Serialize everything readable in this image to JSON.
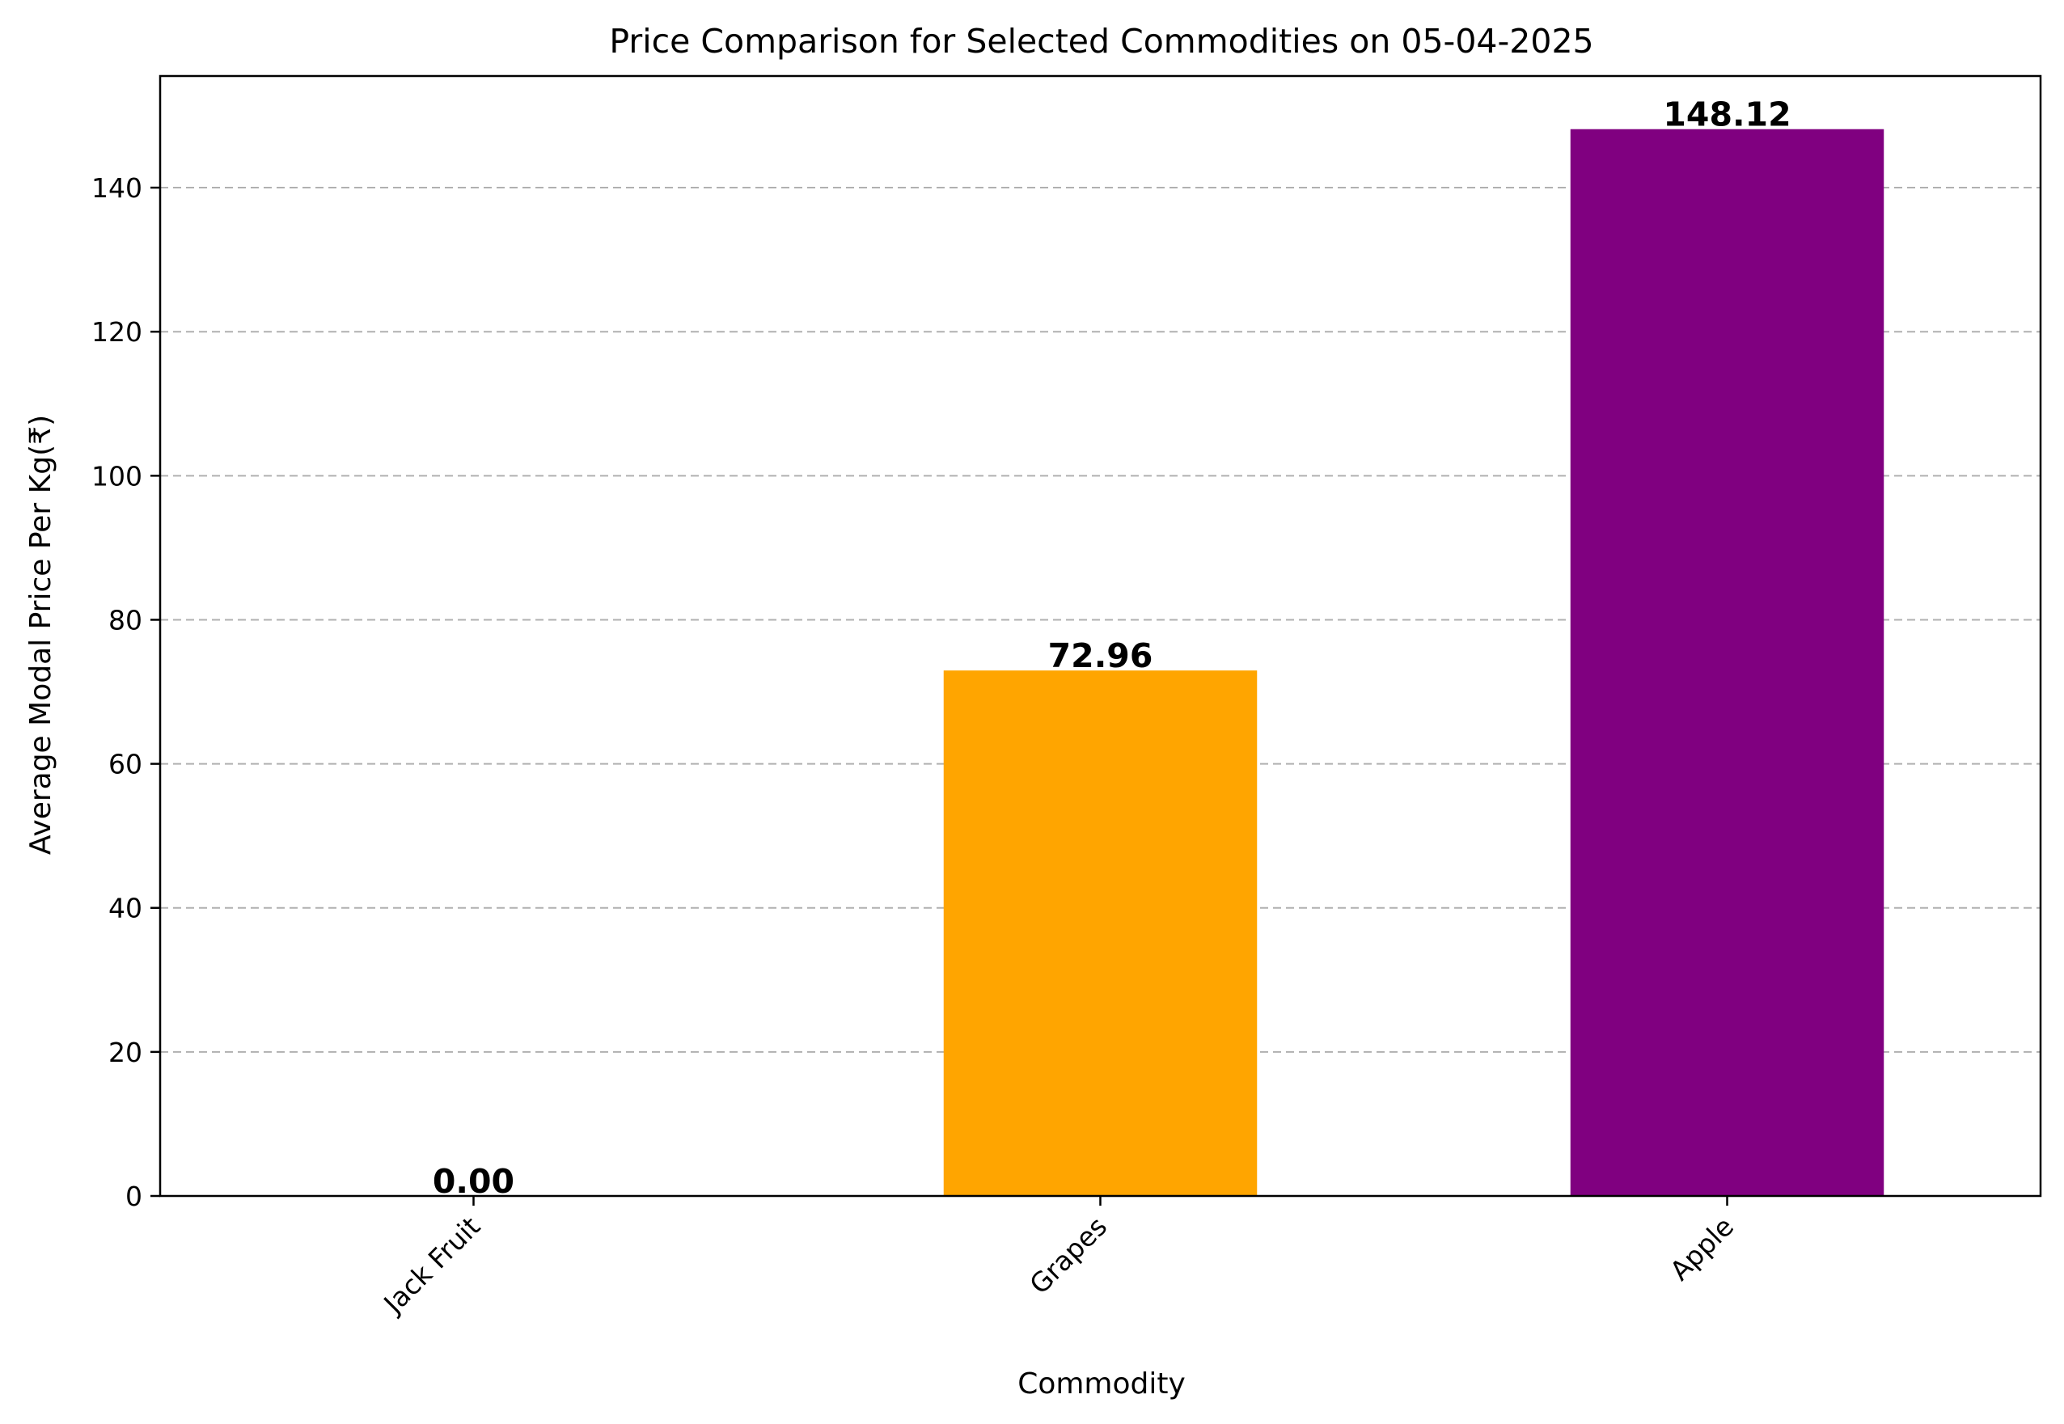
{
  "chart_data": {
    "type": "bar",
    "title": "Price Comparison for Selected Commodities on 05-04-2025",
    "xlabel": "Commodity",
    "ylabel": "Average Modal Price Per Kg(₹)",
    "categories": [
      "Jack Fruit",
      "Grapes",
      "Apple"
    ],
    "values": [
      0.0,
      72.96,
      148.12
    ],
    "value_labels": [
      "0.00",
      "72.96",
      "148.12"
    ],
    "colors": [
      "#008000",
      "#ffa500",
      "#800080"
    ],
    "ylim": [
      0,
      155.5
    ],
    "yticks": [
      0,
      20,
      40,
      60,
      80,
      100,
      120,
      140
    ],
    "grid": "horizontal-dashed",
    "legend": "none"
  }
}
